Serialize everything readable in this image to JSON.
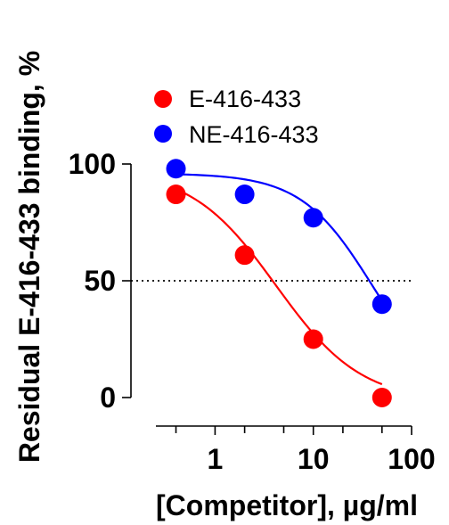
{
  "chart_data": {
    "type": "scatter",
    "title": "",
    "xlabel": "[Competitor], µg/ml",
    "ylabel": "Residual E-416-433 binding, %",
    "x_scale": "log",
    "xlim": [
      0.25,
      100
    ],
    "ylim": [
      0,
      100
    ],
    "x_ticks": [
      {
        "value": 1,
        "label": "1"
      },
      {
        "value": 10,
        "label": "10"
      },
      {
        "value": 100,
        "label": "100"
      }
    ],
    "x_minor_ticks": [
      0.4,
      2,
      5,
      20,
      50
    ],
    "y_ticks": [
      {
        "value": 0,
        "label": "0"
      },
      {
        "value": 50,
        "label": "50"
      },
      {
        "value": 100,
        "label": "100"
      }
    ],
    "reference_line": {
      "y": 50,
      "style": "dotted"
    },
    "legend_position": "top-left",
    "series": [
      {
        "name": "E-416-433",
        "color": "#ff0000",
        "x": [
          0.4,
          2,
          10,
          50
        ],
        "y": [
          87,
          61,
          25,
          0
        ],
        "fit": {
          "top": 98,
          "bottom": -2,
          "log_ec50": 0.62,
          "hill": -1.0
        }
      },
      {
        "name": "NE-416-433",
        "color": "#0000ff",
        "x": [
          0.4,
          2,
          10,
          50
        ],
        "y": [
          98,
          87,
          77,
          40
        ],
        "fit": {
          "top": 96,
          "bottom": 0,
          "log_ec50": 1.6,
          "hill": -1.2
        }
      }
    ]
  }
}
